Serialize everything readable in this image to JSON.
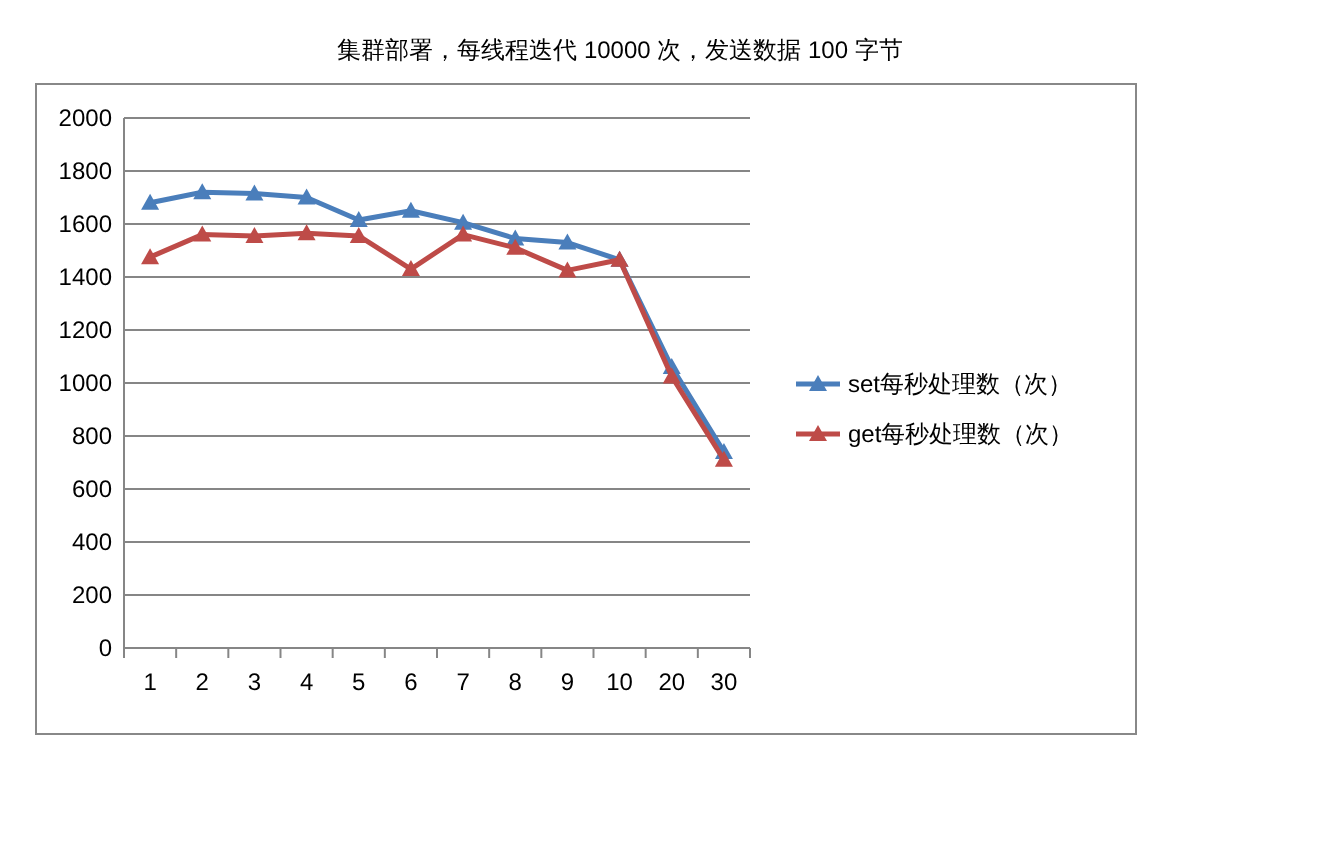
{
  "chart_data": {
    "type": "line",
    "title": "集群部署，每线程迭代 10000 次，发送数据 100 字节",
    "categories": [
      "1",
      "2",
      "3",
      "4",
      "5",
      "6",
      "7",
      "8",
      "9",
      "10",
      "20",
      "30"
    ],
    "series": [
      {
        "name": "set每秒处理数（次）",
        "color": "#4a7ebb",
        "values": [
          1680,
          1720,
          1715,
          1700,
          1615,
          1650,
          1605,
          1545,
          1530,
          1465,
          1060,
          740
        ]
      },
      {
        "name": "get每秒处理数（次）",
        "color": "#be4b48",
        "values": [
          1475,
          1560,
          1555,
          1565,
          1555,
          1430,
          1560,
          1510,
          1425,
          1465,
          1025,
          710
        ]
      }
    ],
    "ylim": [
      0,
      2000
    ],
    "yticks": [
      0,
      200,
      400,
      600,
      800,
      1000,
      1200,
      1400,
      1600,
      1800,
      2000
    ],
    "grid": "y",
    "legend": "right",
    "marker": "triangle",
    "line_style": "solid"
  }
}
